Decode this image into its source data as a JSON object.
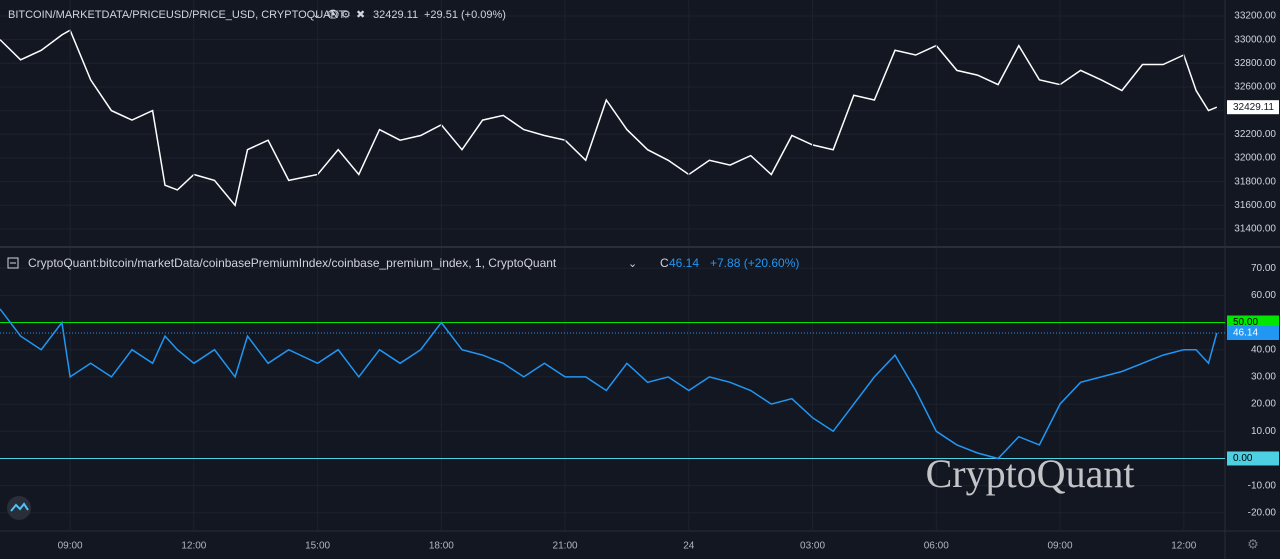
{
  "chart_data": [
    {
      "type": "line",
      "title": "BITCOIN/MARKETDATA/PRICEUSD/PRICE_USD, CRYPTOQUANT",
      "last_value": "32429.11",
      "change": "+29.51 (+0.09%)",
      "color": "#ffffff",
      "x": [
        7.3,
        7.8,
        8.3,
        8.8,
        9.0,
        9.5,
        10.0,
        10.5,
        11.0,
        11.3,
        11.6,
        12.0,
        12.5,
        13.0,
        13.3,
        13.8,
        14.3,
        15.0,
        15.5,
        16.0,
        16.5,
        17.0,
        17.5,
        18.0,
        18.5,
        19.0,
        19.5,
        20.0,
        20.5,
        21.0,
        21.5,
        22.0,
        22.5,
        23.0,
        23.5,
        24.0,
        24.5,
        25.0,
        25.5,
        26.0,
        26.5,
        27.0,
        27.5,
        28.0,
        28.5,
        29.0,
        29.5,
        30.0,
        30.5,
        31.0,
        31.5,
        32.0,
        32.5,
        33.0,
        33.5,
        34.0,
        34.5,
        35.0,
        35.5,
        36.0,
        36.3,
        36.6,
        36.8
      ],
      "values": [
        33000,
        32830,
        32910,
        33040,
        33080,
        32660,
        32400,
        32320,
        32400,
        31770,
        31730,
        31860,
        31810,
        31600,
        32070,
        32150,
        31810,
        31860,
        32070,
        31860,
        32240,
        32150,
        32190,
        32280,
        32070,
        32320,
        32360,
        32240,
        32190,
        32150,
        31980,
        32490,
        32240,
        32070,
        31980,
        31860,
        31980,
        31940,
        32020,
        31860,
        32190,
        32110,
        32070,
        32530,
        32490,
        32910,
        32870,
        32950,
        32740,
        32700,
        32620,
        32950,
        32660,
        32620,
        32740,
        32660,
        32570,
        32790,
        32790,
        32870,
        32570,
        32400,
        32429.11
      ],
      "xlim": [
        7.3,
        37.0
      ],
      "ylim": [
        31256,
        33335
      ],
      "yticks": [
        {
          "value": 31400,
          "label": "31400.00"
        },
        {
          "value": 31600,
          "label": "31600.00"
        },
        {
          "value": 31800,
          "label": "31800.00"
        },
        {
          "value": 32000,
          "label": "32000.00"
        },
        {
          "value": 32200,
          "label": "32200.00"
        },
        {
          "value": 32400,
          "label": "32400.00"
        },
        {
          "value": 32600,
          "label": "32600.00"
        },
        {
          "value": 32800,
          "label": "32800.00"
        },
        {
          "value": 33000,
          "label": "33000.00"
        },
        {
          "value": 33200,
          "label": "33200.00"
        }
      ],
      "grid": true
    },
    {
      "type": "line",
      "title": "CryptoQuant:bitcoin/marketData/coinbasePremiumIndex/coinbase_premium_index, 1, CryptoQuant",
      "last_prefix": "C",
      "last_value": "46.14",
      "change": "+7.88 (+20.60%)",
      "color": "#2196f3",
      "x": [
        7.3,
        7.8,
        8.3,
        8.8,
        9.0,
        9.5,
        10.0,
        10.5,
        11.0,
        11.3,
        11.6,
        12.0,
        12.5,
        13.0,
        13.3,
        13.8,
        14.3,
        15.0,
        15.5,
        16.0,
        16.5,
        17.0,
        17.5,
        18.0,
        18.5,
        19.0,
        19.5,
        20.0,
        20.5,
        21.0,
        21.5,
        22.0,
        22.5,
        23.0,
        23.5,
        24.0,
        24.5,
        25.0,
        25.5,
        26.0,
        26.5,
        27.0,
        27.5,
        28.0,
        28.5,
        29.0,
        29.5,
        30.0,
        30.5,
        31.0,
        31.5,
        32.0,
        32.5,
        33.0,
        33.5,
        34.0,
        34.5,
        35.0,
        35.5,
        36.0,
        36.3,
        36.6,
        36.8
      ],
      "values": [
        55,
        45,
        40,
        50,
        30,
        35,
        30,
        40,
        35,
        45,
        40,
        35,
        40,
        30,
        45,
        35,
        40,
        35,
        40,
        30,
        40,
        35,
        40,
        50,
        40,
        38,
        35,
        30,
        35,
        30,
        30,
        25,
        35,
        28,
        30,
        25,
        30,
        28,
        25,
        20,
        22,
        15,
        10,
        20,
        30,
        38,
        25,
        10,
        5,
        2,
        0,
        8,
        5,
        20,
        28,
        30,
        32,
        35,
        38,
        40,
        40,
        35,
        46.14
      ],
      "xlim": [
        7.3,
        37.0
      ],
      "ylim": [
        -26.3,
        77.4
      ],
      "yticks": [
        {
          "value": -20,
          "label": "-20.00"
        },
        {
          "value": -10,
          "label": "-10.00"
        },
        {
          "value": 0,
          "label": "0.00"
        },
        {
          "value": 10,
          "label": "10.00"
        },
        {
          "value": 20,
          "label": "20.00"
        },
        {
          "value": 30,
          "label": "30.00"
        },
        {
          "value": 40,
          "label": "40.00"
        },
        {
          "value": 50,
          "label": "50.00"
        },
        {
          "value": 60,
          "label": "60.00"
        },
        {
          "value": 70,
          "label": "70.00"
        }
      ],
      "hlines": [
        {
          "value": 50,
          "label": "50.00",
          "color": "#00e600"
        },
        {
          "value": 0,
          "label": "0.00",
          "color": "#4dd0e1"
        }
      ],
      "xticks": [
        {
          "value": 9,
          "label": "09:00"
        },
        {
          "value": 12,
          "label": "12:00"
        },
        {
          "value": 15,
          "label": "15:00"
        },
        {
          "value": 18,
          "label": "18:00"
        },
        {
          "value": 21,
          "label": "21:00"
        },
        {
          "value": 24,
          "label": "24"
        },
        {
          "value": 27,
          "label": "03:00"
        },
        {
          "value": 30,
          "label": "06:00"
        },
        {
          "value": 33,
          "label": "09:00"
        },
        {
          "value": 36,
          "label": "12:00"
        }
      ],
      "grid": true
    }
  ],
  "watermark": "CryptoQuant"
}
